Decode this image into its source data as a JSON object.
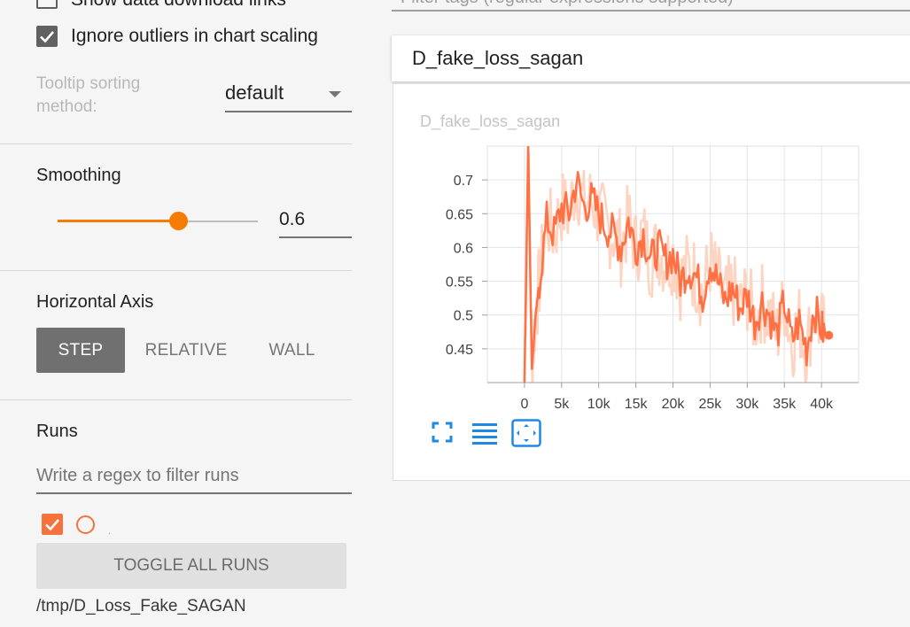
{
  "sidebar": {
    "download_links_label": "Show data download links",
    "ignore_outliers_label": "Ignore outliers in chart scaling",
    "tooltip_sorting": {
      "label_line1": "Tooltip sorting",
      "label_line2": "method:",
      "value": "default"
    },
    "smoothing": {
      "label": "Smoothing",
      "value": "0.6",
      "level": 0.6
    },
    "horizontal_axis": {
      "label": "Horizontal Axis",
      "options": [
        "STEP",
        "RELATIVE",
        "WALL"
      ],
      "selected": "STEP"
    },
    "runs": {
      "label": "Runs",
      "filter_placeholder": "Write a regex to filter runs",
      "run_name": ".",
      "toggle_all_label": "TOGGLE ALL RUNS",
      "path": "/tmp/D_Loss_Fake_SAGAN"
    }
  },
  "main": {
    "search_hint": "Filter tags (regular expressions supported)",
    "card": {
      "header_title": "D_fake_loss_sagan",
      "chart_title": "D_fake_loss_sagan"
    }
  },
  "colors": {
    "accent": "#f57c00",
    "series_smoothed": "#ff7043",
    "series_raw": "#fdd3c2",
    "tool_blue": "#1e88e5"
  },
  "icons": [
    "check-icon",
    "chevron-down-icon",
    "fit-domain-icon",
    "data-table-icon",
    "pan-zoom-icon"
  ],
  "chart_data": {
    "type": "line",
    "title": "D_fake_loss_sagan",
    "xlabel": "",
    "ylabel": "",
    "x_ticks": [
      "0",
      "5k",
      "10k",
      "15k",
      "20k",
      "25k",
      "30k",
      "35k",
      "40k"
    ],
    "y_ticks": [
      "0.45",
      "0.5",
      "0.55",
      "0.6",
      "0.65",
      "0.7"
    ],
    "xlim": [
      -5000,
      45000
    ],
    "ylim": [
      0.4,
      0.75
    ],
    "grid": true,
    "series": [
      {
        "x": [
          0,
          500,
          1000,
          1500,
          2000,
          3000,
          4000,
          5000,
          6000,
          7000,
          8000,
          9000,
          10000,
          11000,
          12000,
          13000,
          14000,
          15000,
          16000,
          17000,
          18000,
          19000,
          20000,
          21000,
          22000,
          23000,
          24000,
          25000,
          26000,
          27000,
          28000,
          29000,
          30000,
          31000,
          32000,
          33000,
          34000,
          35000,
          36000,
          37000,
          38000,
          39000,
          40000,
          40500
        ],
        "y": [
          0.4,
          0.75,
          0.42,
          0.5,
          0.55,
          0.64,
          0.62,
          0.66,
          0.65,
          0.7,
          0.66,
          0.67,
          0.65,
          0.63,
          0.62,
          0.6,
          0.64,
          0.6,
          0.62,
          0.58,
          0.6,
          0.58,
          0.59,
          0.55,
          0.57,
          0.56,
          0.53,
          0.58,
          0.55,
          0.52,
          0.54,
          0.51,
          0.53,
          0.49,
          0.52,
          0.5,
          0.47,
          0.52,
          0.46,
          0.49,
          0.45,
          0.51,
          0.48,
          0.47
        ]
      }
    ]
  }
}
